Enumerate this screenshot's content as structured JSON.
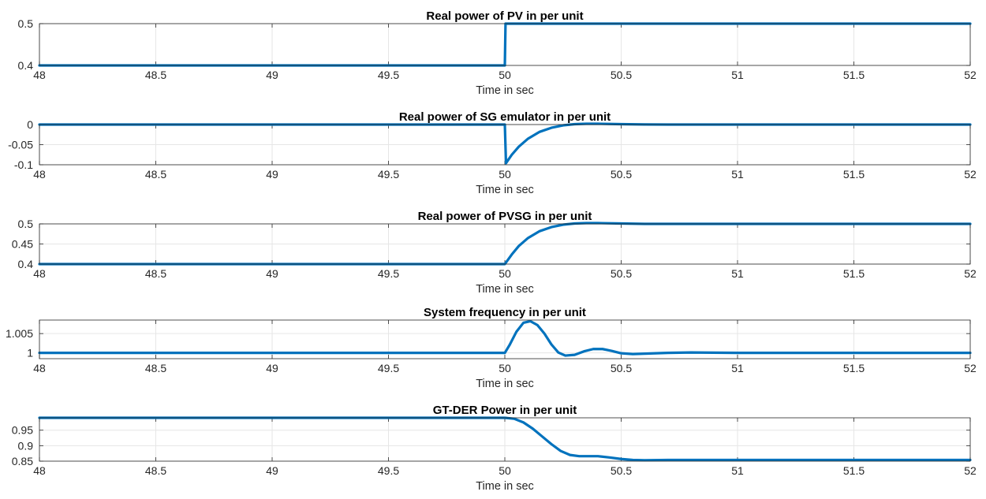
{
  "chart_data": [
    {
      "type": "line",
      "title": "Real power of PV in per unit",
      "xlabel": "Time in sec",
      "ylabel": "",
      "xlim": [
        48,
        52
      ],
      "ylim": [
        0.4,
        0.5
      ],
      "xticks": [
        "48",
        "48.5",
        "49",
        "49.5",
        "50",
        "50.5",
        "51",
        "51.5",
        "52"
      ],
      "yticks": [
        "0.4",
        "0.5"
      ],
      "grid": true,
      "series": [
        {
          "color": "#0072BD",
          "x": [
            48,
            49.999,
            50.0,
            50.003,
            52
          ],
          "y": [
            0.4,
            0.4,
            0.4,
            0.5,
            0.5
          ]
        }
      ]
    },
    {
      "type": "line",
      "title": "Real power of SG emulator in per unit",
      "xlabel": "Time in sec",
      "ylabel": "",
      "xlim": [
        48,
        52
      ],
      "ylim": [
        -0.1,
        0.0
      ],
      "xticks": [
        "48",
        "48.5",
        "49",
        "49.5",
        "50",
        "50.5",
        "51",
        "51.5",
        "52"
      ],
      "yticks": [
        "-0.1",
        "-0.05",
        "0"
      ],
      "grid": true,
      "series": [
        {
          "color": "#0072BD",
          "x": [
            48,
            49.999,
            50.0,
            50.005,
            50.03,
            50.06,
            50.1,
            50.15,
            50.2,
            50.25,
            50.3,
            50.35,
            50.4,
            50.45,
            50.5,
            50.6,
            50.7,
            52
          ],
          "y": [
            0.0,
            0.0,
            0.0,
            -0.096,
            -0.075,
            -0.055,
            -0.035,
            -0.018,
            -0.008,
            -0.002,
            0.001,
            0.002,
            0.002,
            0.0015,
            0.001,
            0.0003,
            0.0,
            0.0
          ]
        }
      ]
    },
    {
      "type": "line",
      "title": "Real power of PVSG in per unit",
      "xlabel": "Time in sec",
      "ylabel": "",
      "xlim": [
        48,
        52
      ],
      "ylim": [
        0.4,
        0.5
      ],
      "xticks": [
        "48",
        "48.5",
        "49",
        "49.5",
        "50",
        "50.5",
        "51",
        "51.5",
        "52"
      ],
      "yticks": [
        "0.4",
        "0.45",
        "0.5"
      ],
      "grid": true,
      "series": [
        {
          "color": "#0072BD",
          "x": [
            48,
            49.999,
            50.0,
            50.03,
            50.06,
            50.1,
            50.15,
            50.2,
            50.25,
            50.3,
            50.35,
            50.4,
            50.5,
            50.6,
            51,
            52
          ],
          "y": [
            0.4,
            0.4,
            0.4,
            0.424,
            0.445,
            0.465,
            0.482,
            0.492,
            0.498,
            0.501,
            0.502,
            0.502,
            0.501,
            0.5,
            0.5,
            0.5
          ]
        }
      ]
    },
    {
      "type": "line",
      "title": "System frequency in per unit",
      "xlabel": "Time in sec",
      "ylabel": "",
      "xlim": [
        48,
        52
      ],
      "ylim": [
        0.9985,
        1.0085
      ],
      "xticks": [
        "48",
        "48.5",
        "49",
        "49.5",
        "50",
        "50.5",
        "51",
        "51.5",
        "52"
      ],
      "yticks": [
        "1",
        "1.005"
      ],
      "grid": true,
      "series": [
        {
          "color": "#0072BD",
          "x": [
            48,
            50.0,
            50.02,
            50.05,
            50.08,
            50.11,
            50.14,
            50.17,
            50.2,
            50.23,
            50.26,
            50.3,
            50.34,
            50.38,
            50.42,
            50.46,
            50.5,
            50.55,
            50.6,
            50.7,
            50.8,
            51,
            52
          ],
          "y": [
            1.0,
            1.0,
            1.002,
            1.0055,
            1.0078,
            1.0082,
            1.0072,
            1.005,
            1.0022,
            1.0001,
            0.9993,
            0.9995,
            1.0004,
            1.001,
            1.001,
            1.0005,
            0.9999,
            0.9997,
            0.9998,
            1.0,
            1.0001,
            1.0,
            1.0
          ]
        }
      ]
    },
    {
      "type": "line",
      "title": "GT-DER Power in per unit",
      "xlabel": "Time in sec",
      "ylabel": "",
      "xlim": [
        48,
        52
      ],
      "ylim": [
        0.85,
        0.99
      ],
      "xticks": [
        "48",
        "48.5",
        "49",
        "49.5",
        "50",
        "50.5",
        "51",
        "51.5",
        "52"
      ],
      "yticks": [
        "0.85",
        "0.9",
        "0.95"
      ],
      "grid": true,
      "series": [
        {
          "color": "#0072BD",
          "x": [
            48,
            50.0,
            50.04,
            50.08,
            50.12,
            50.16,
            50.2,
            50.24,
            50.28,
            50.32,
            50.36,
            50.4,
            50.45,
            50.5,
            50.55,
            50.6,
            50.7,
            51,
            52
          ],
          "y": [
            0.99,
            0.99,
            0.987,
            0.975,
            0.955,
            0.93,
            0.905,
            0.883,
            0.87,
            0.866,
            0.866,
            0.866,
            0.862,
            0.857,
            0.854,
            0.853,
            0.854,
            0.854,
            0.854
          ]
        }
      ]
    }
  ]
}
